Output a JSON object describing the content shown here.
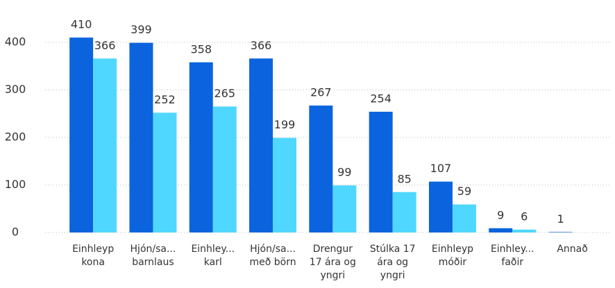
{
  "chart_data": {
    "type": "bar",
    "categories": [
      "Einhleyp\nkona",
      "Hjón/sa...\nbarnlaus",
      "Einhley...\nkarl",
      "Hjón/sa...\nmeð börn",
      "Drengur\n17 ára og\nyngri",
      "Stúlka 17\nára og\nyngri",
      "Einhleyp\nmóðir",
      "Einhley...\nfaðir",
      "Annað"
    ],
    "series": [
      {
        "color": "#0b64dd",
        "values": [
          410,
          399,
          358,
          366,
          267,
          254,
          107,
          9,
          1
        ]
      },
      {
        "color": "#50d7ff",
        "values": [
          366,
          252,
          265,
          199,
          99,
          85,
          59,
          6,
          null
        ]
      }
    ],
    "ylim": [
      0,
      400
    ],
    "yticks": [
      0,
      100,
      200,
      300,
      400
    ],
    "grid": true
  }
}
